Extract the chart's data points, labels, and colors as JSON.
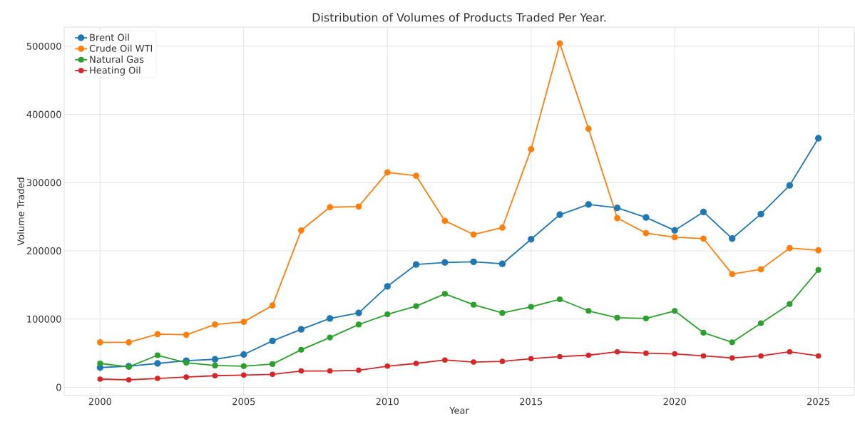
{
  "chart_data": {
    "type": "line",
    "title": "Distribution of Volumes of Products Traded Per Year.",
    "xlabel": "Year",
    "ylabel": "Volume Traded",
    "x": [
      2000,
      2001,
      2002,
      2003,
      2004,
      2005,
      2006,
      2007,
      2008,
      2009,
      2010,
      2011,
      2012,
      2013,
      2014,
      2015,
      2016,
      2017,
      2018,
      2019,
      2020,
      2021,
      2022,
      2023,
      2024,
      2025
    ],
    "series": [
      {
        "name": "Brent Oil",
        "color": "#1f77b4",
        "values": [
          29000,
          31000,
          35000,
          39000,
          41000,
          48000,
          68000,
          85000,
          101000,
          109000,
          148000,
          180000,
          183000,
          184000,
          181000,
          217000,
          253000,
          268000,
          263000,
          249000,
          230000,
          257000,
          218000,
          254000,
          296000,
          365000
        ]
      },
      {
        "name": "Crude Oil WTI",
        "color": "#ff7f0e",
        "values": [
          66000,
          66000,
          78000,
          77000,
          92000,
          96000,
          120000,
          230000,
          264000,
          265000,
          315000,
          310000,
          244000,
          224000,
          234000,
          349000,
          504000,
          379000,
          248000,
          226000,
          220000,
          218000,
          166000,
          173000,
          204000,
          201000
        ]
      },
      {
        "name": "Natural Gas",
        "color": "#2ca02c",
        "values": [
          35000,
          30000,
          47000,
          36000,
          32000,
          31000,
          34000,
          55000,
          73000,
          92000,
          107000,
          119000,
          137000,
          121000,
          109000,
          118000,
          129000,
          112000,
          102000,
          101000,
          112000,
          80000,
          66000,
          94000,
          122000,
          172000
        ]
      },
      {
        "name": "Heating Oil",
        "color": "#d62728",
        "values": [
          12000,
          11000,
          13000,
          15000,
          17000,
          18000,
          19000,
          24000,
          24000,
          25000,
          31000,
          35000,
          40000,
          37000,
          38000,
          42000,
          45000,
          47000,
          52000,
          50000,
          49000,
          46000,
          43000,
          46000,
          52000,
          46000
        ]
      }
    ],
    "xlim": [
      1998.75,
      2026.25
    ],
    "ylim": [
      -12000,
      528000
    ],
    "xticks": [
      2000,
      2005,
      2010,
      2015,
      2020,
      2025
    ],
    "yticks": [
      0,
      100000,
      200000,
      300000,
      400000,
      500000
    ],
    "grid": true,
    "legend": "top left",
    "marker": "circle",
    "line_style": "solid"
  }
}
